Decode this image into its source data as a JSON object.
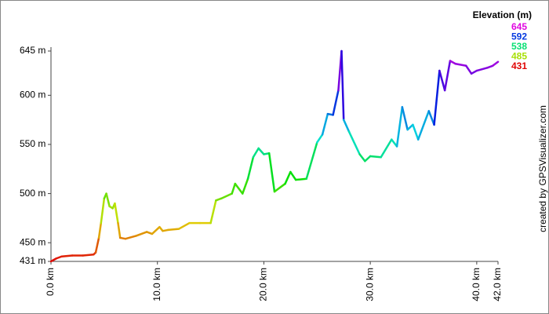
{
  "chart_data": {
    "type": "line",
    "legend_title": "Elevation (m)",
    "credit": "created by GPSVisualizer.com",
    "color_scale": [
      645,
      592,
      538,
      485,
      431
    ],
    "x": [
      0,
      0.5,
      1,
      2,
      3,
      4,
      4.2,
      4.5,
      4.7,
      5.0,
      5.2,
      5.5,
      5.8,
      6.0,
      6.3,
      6.5,
      7,
      8,
      9,
      9.5,
      10.2,
      10.5,
      11,
      12,
      13,
      14,
      15,
      15.5,
      16,
      17,
      17.3,
      18,
      18.5,
      19,
      19.5,
      20,
      20.5,
      21,
      22,
      22.5,
      23,
      24,
      25,
      25.5,
      26,
      26.5,
      27,
      27.3,
      27.5,
      28,
      29,
      29.5,
      30,
      31,
      32,
      32.5,
      33,
      33.5,
      34,
      34.5,
      35.5,
      36,
      36.5,
      37,
      37.5,
      38,
      39,
      39.5,
      40,
      41,
      41.5,
      42
    ],
    "values": [
      431,
      434,
      436,
      437,
      437,
      438,
      440,
      455,
      470,
      495,
      500,
      487,
      485,
      490,
      470,
      455,
      454,
      457,
      461,
      459,
      466,
      462,
      463,
      464,
      470,
      470,
      470,
      493,
      495,
      500,
      510,
      500,
      515,
      537,
      546,
      540,
      541,
      502,
      510,
      522,
      514,
      515,
      552,
      560,
      581,
      580,
      605,
      645,
      575,
      563,
      540,
      533,
      538,
      537,
      555,
      548,
      588,
      565,
      570,
      555,
      584,
      570,
      625,
      605,
      635,
      632,
      630,
      622,
      625,
      628,
      630,
      634
    ],
    "xlim": [
      0,
      42
    ],
    "ylim": [
      431,
      645
    ],
    "xticks": [
      {
        "value": 0,
        "label": "0.0 km"
      },
      {
        "value": 10,
        "label": "10.0 km"
      },
      {
        "value": 20,
        "label": "20.0 km"
      },
      {
        "value": 30,
        "label": "30.0 km"
      },
      {
        "value": 40,
        "label": "40.0 km"
      },
      {
        "value": 42,
        "label": "42.0 km"
      }
    ],
    "yticks": [
      {
        "value": 431,
        "label": "431 m"
      },
      {
        "value": 450,
        "label": "450 m"
      },
      {
        "value": 500,
        "label": "500 m"
      },
      {
        "value": 550,
        "label": "550 m"
      },
      {
        "value": 600,
        "label": "600 m"
      },
      {
        "value": 645,
        "label": "645 m"
      }
    ]
  }
}
